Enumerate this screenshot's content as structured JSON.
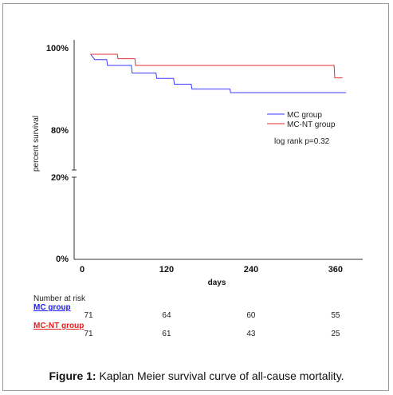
{
  "chart_data": {
    "type": "line",
    "ylabel": "percent survival",
    "xlabel": "days",
    "x_ticks": [
      0,
      120,
      240,
      360
    ],
    "x_tick_labels": [
      "0",
      "120",
      "240",
      "360"
    ],
    "y_tick_labels": {
      "top": "100%",
      "upper_low": "80%",
      "lower_high": "20%",
      "bottom": "0%"
    },
    "axis_break": true,
    "xlim": [
      0,
      400
    ],
    "series": [
      {
        "name": "MC group",
        "color": "#3a3aff",
        "step_points": [
          [
            12,
            100
          ],
          [
            18,
            98.8
          ],
          [
            35,
            98.8
          ],
          [
            36,
            97.5
          ],
          [
            70,
            97.5
          ],
          [
            71,
            95.8
          ],
          [
            105,
            95.8
          ],
          [
            106,
            94.6
          ],
          [
            130,
            94.6
          ],
          [
            131,
            93.3
          ],
          [
            155,
            93.3
          ],
          [
            156,
            92.2
          ],
          [
            210,
            92.2
          ],
          [
            211,
            91.4
          ],
          [
            375,
            91.4
          ]
        ]
      },
      {
        "name": "MC-NT group",
        "color": "#e03030",
        "step_points": [
          [
            12,
            100
          ],
          [
            50,
            100
          ],
          [
            51,
            99
          ],
          [
            75,
            99
          ],
          [
            76,
            97.5
          ],
          [
            358,
            97.5
          ],
          [
            359,
            94.7
          ],
          [
            370,
            94.7
          ]
        ]
      }
    ],
    "annotation": "log rank p=0.32",
    "legend_position": "right"
  },
  "risk_table": {
    "header": "Number at risk",
    "rows": [
      {
        "group": "MC group",
        "values": [
          "71",
          "64",
          "60",
          "55"
        ]
      },
      {
        "group": "MC-NT group",
        "values": [
          "71",
          "61",
          "43",
          "25"
        ]
      }
    ]
  },
  "caption": {
    "bold": "Figure 1:",
    "text": " Kaplan Meier survival curve of all-cause mortality."
  }
}
